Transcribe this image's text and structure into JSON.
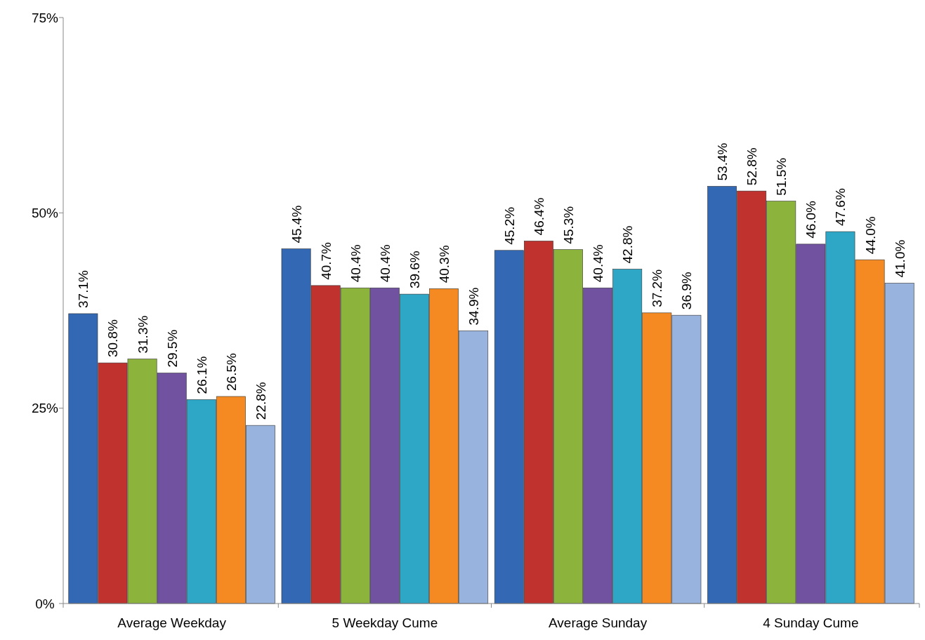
{
  "chart_data": {
    "type": "bar",
    "categories": [
      "Average Weekday",
      "5 Weekday Cume",
      "Average Sunday",
      "4 Sunday Cume"
    ],
    "series": [
      {
        "color": "#3368b5",
        "values": [
          37.1,
          45.4,
          45.2,
          53.4
        ],
        "value_labels": [
          "37.1%",
          "45.4%",
          "45.2%",
          "53.4%"
        ]
      },
      {
        "color": "#c0322e",
        "values": [
          30.8,
          40.7,
          46.4,
          52.8
        ],
        "value_labels": [
          "30.8%",
          "40.7%",
          "46.4%",
          "52.8%"
        ]
      },
      {
        "color": "#8cb43c",
        "values": [
          31.3,
          40.4,
          45.3,
          51.5
        ],
        "value_labels": [
          "31.3%",
          "40.4%",
          "45.3%",
          "51.5%"
        ]
      },
      {
        "color": "#7052a0",
        "values": [
          29.5,
          40.4,
          40.4,
          46.0
        ],
        "value_labels": [
          "29.5%",
          "40.4%",
          "40.4%",
          "46.0%"
        ]
      },
      {
        "color": "#2ea6c6",
        "values": [
          26.1,
          39.6,
          42.8,
          47.6
        ],
        "value_labels": [
          "26.1%",
          "39.6%",
          "42.8%",
          "47.6%"
        ]
      },
      {
        "color": "#f58a22",
        "values": [
          26.5,
          40.3,
          37.2,
          44.0
        ],
        "value_labels": [
          "26.5%",
          "40.3%",
          "37.2%",
          "44.0%"
        ]
      },
      {
        "color": "#97b3de",
        "values": [
          22.8,
          34.9,
          36.9,
          41.0
        ],
        "value_labels": [
          "22.8%",
          "34.9%",
          "36.9%",
          "41.0%"
        ]
      }
    ],
    "ylim": [
      0,
      75
    ],
    "yticks": [
      {
        "value": 0,
        "label": "0%"
      },
      {
        "value": 25,
        "label": "25%"
      },
      {
        "value": 50,
        "label": "50%"
      },
      {
        "value": 75,
        "label": "75%"
      }
    ],
    "grid": false
  }
}
